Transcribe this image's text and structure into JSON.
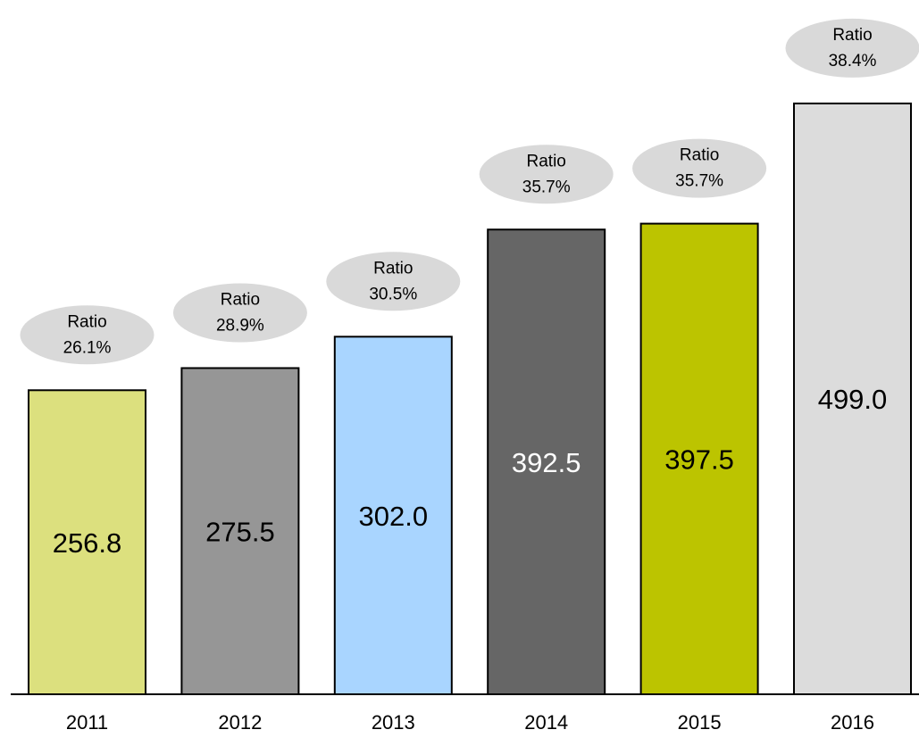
{
  "chart_data": {
    "type": "bar",
    "categories": [
      "2011",
      "2012",
      "2013",
      "2014",
      "2015",
      "2016"
    ],
    "values": [
      256.8,
      275.5,
      302.0,
      392.5,
      397.5,
      499.0
    ],
    "value_labels": [
      "256.8",
      "275.5",
      "302.0",
      "392.5",
      "397.5",
      "499.0"
    ],
    "colors": [
      "#dce07e",
      "#969696",
      "#a9d5ff",
      "#666666",
      "#bcc400",
      "#dcdcdc"
    ],
    "ratio_title": "Ratio",
    "ratio_labels": [
      "26.1%",
      "28.9%",
      "30.5%",
      "35.7%",
      "35.7%",
      "38.4%"
    ],
    "ylim": [
      0,
      560
    ]
  }
}
